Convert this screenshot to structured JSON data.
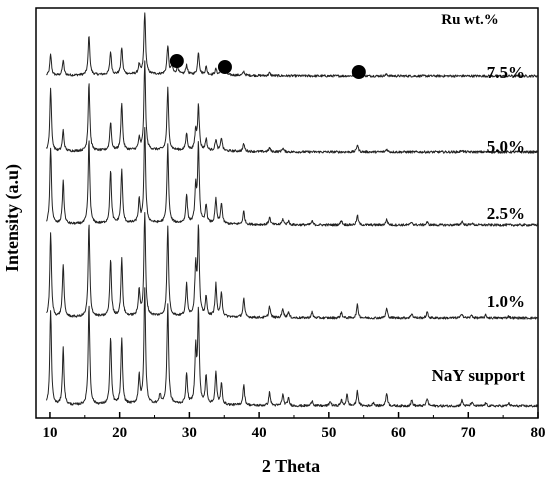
{
  "chart_data": {
    "type": "line",
    "xlabel": "2 Theta",
    "ylabel": "Intensity (a.u)",
    "xlim": [
      8,
      80
    ],
    "xticks": [
      10,
      20,
      30,
      40,
      50,
      60,
      70,
      80
    ],
    "legend_title": "Ru wt.%",
    "marker_positions_2theta": [
      28.2,
      35.1,
      54.3
    ],
    "series": [
      {
        "name": "7.5%",
        "peaks": [
          [
            10.1,
            0.22
          ],
          [
            11.9,
            0.16
          ],
          [
            15.6,
            0.42
          ],
          [
            18.7,
            0.24
          ],
          [
            20.3,
            0.28
          ],
          [
            22.8,
            0.1
          ],
          [
            23.6,
            0.65
          ],
          [
            26.9,
            0.3
          ],
          [
            27.5,
            0.1
          ],
          [
            28.3,
            0.09
          ],
          [
            29.6,
            0.1
          ],
          [
            31.3,
            0.24
          ],
          [
            32.4,
            0.08
          ],
          [
            33.8,
            0.06
          ],
          [
            34.6,
            0.08
          ],
          [
            35.1,
            0.09
          ],
          [
            37.8,
            0.04
          ],
          [
            41.5,
            0.03
          ],
          [
            54.1,
            0.09
          ],
          [
            58.3,
            0.02
          ]
        ]
      },
      {
        "name": "5.0%",
        "peaks": [
          [
            10.1,
            0.66
          ],
          [
            11.9,
            0.22
          ],
          [
            15.6,
            0.72
          ],
          [
            18.7,
            0.3
          ],
          [
            20.3,
            0.5
          ],
          [
            22.8,
            0.12
          ],
          [
            23.6,
            0.92
          ],
          [
            26.9,
            0.65
          ],
          [
            29.6,
            0.18
          ],
          [
            30.9,
            0.2
          ],
          [
            31.3,
            0.48
          ],
          [
            32.4,
            0.12
          ],
          [
            33.8,
            0.12
          ],
          [
            34.6,
            0.14
          ],
          [
            37.8,
            0.08
          ],
          [
            41.5,
            0.04
          ],
          [
            43.4,
            0.04
          ],
          [
            54.1,
            0.08
          ],
          [
            58.3,
            0.03
          ],
          [
            69.1,
            0.02
          ]
        ]
      },
      {
        "name": "2.5%",
        "peaks": [
          [
            10.1,
            0.8
          ],
          [
            11.9,
            0.46
          ],
          [
            15.6,
            0.88
          ],
          [
            18.7,
            0.56
          ],
          [
            20.3,
            0.56
          ],
          [
            22.8,
            0.24
          ],
          [
            23.6,
            1.0
          ],
          [
            26.9,
            0.82
          ],
          [
            29.6,
            0.3
          ],
          [
            30.9,
            0.36
          ],
          [
            31.3,
            0.82
          ],
          [
            32.4,
            0.2
          ],
          [
            33.8,
            0.26
          ],
          [
            34.6,
            0.22
          ],
          [
            37.8,
            0.14
          ],
          [
            41.5,
            0.08
          ],
          [
            43.4,
            0.06
          ],
          [
            44.2,
            0.04
          ],
          [
            47.6,
            0.04
          ],
          [
            51.8,
            0.05
          ],
          [
            54.1,
            0.1
          ],
          [
            58.3,
            0.06
          ],
          [
            61.9,
            0.03
          ],
          [
            64.1,
            0.03
          ],
          [
            69.1,
            0.04
          ],
          [
            70.5,
            0.02
          ]
        ]
      },
      {
        "name": "1.0%",
        "peaks": [
          [
            10.1,
            0.88
          ],
          [
            11.9,
            0.56
          ],
          [
            15.6,
            0.98
          ],
          [
            18.7,
            0.6
          ],
          [
            20.3,
            0.6
          ],
          [
            22.8,
            0.28
          ],
          [
            23.6,
            1.08
          ],
          [
            26.9,
            0.95
          ],
          [
            29.6,
            0.34
          ],
          [
            30.9,
            0.52
          ],
          [
            31.3,
            0.92
          ],
          [
            32.4,
            0.2
          ],
          [
            33.8,
            0.34
          ],
          [
            34.6,
            0.26
          ],
          [
            37.8,
            0.2
          ],
          [
            41.5,
            0.12
          ],
          [
            43.4,
            0.1
          ],
          [
            44.2,
            0.06
          ],
          [
            47.6,
            0.06
          ],
          [
            51.8,
            0.06
          ],
          [
            54.1,
            0.14
          ],
          [
            58.3,
            0.1
          ],
          [
            61.9,
            0.05
          ],
          [
            64.1,
            0.06
          ],
          [
            69.1,
            0.05
          ],
          [
            70.5,
            0.03
          ],
          [
            72.5,
            0.03
          ],
          [
            75.8,
            0.02
          ]
        ]
      },
      {
        "name": "NaY support",
        "peaks": [
          [
            10.1,
            1.0
          ],
          [
            11.9,
            0.6
          ],
          [
            15.6,
            1.05
          ],
          [
            18.7,
            0.7
          ],
          [
            20.3,
            0.68
          ],
          [
            22.8,
            0.3
          ],
          [
            23.6,
            1.2
          ],
          [
            25.8,
            0.1
          ],
          [
            26.9,
            1.05
          ],
          [
            29.6,
            0.32
          ],
          [
            30.9,
            0.56
          ],
          [
            31.3,
            0.96
          ],
          [
            32.4,
            0.3
          ],
          [
            33.8,
            0.34
          ],
          [
            34.6,
            0.22
          ],
          [
            37.8,
            0.22
          ],
          [
            41.5,
            0.14
          ],
          [
            43.4,
            0.12
          ],
          [
            44.2,
            0.08
          ],
          [
            47.6,
            0.06
          ],
          [
            50.2,
            0.05
          ],
          [
            51.8,
            0.06
          ],
          [
            52.6,
            0.12
          ],
          [
            54.1,
            0.16
          ],
          [
            56.4,
            0.04
          ],
          [
            58.3,
            0.14
          ],
          [
            61.9,
            0.06
          ],
          [
            64.1,
            0.08
          ],
          [
            69.1,
            0.06
          ],
          [
            70.5,
            0.04
          ],
          [
            72.5,
            0.03
          ],
          [
            75.8,
            0.03
          ]
        ]
      }
    ]
  }
}
